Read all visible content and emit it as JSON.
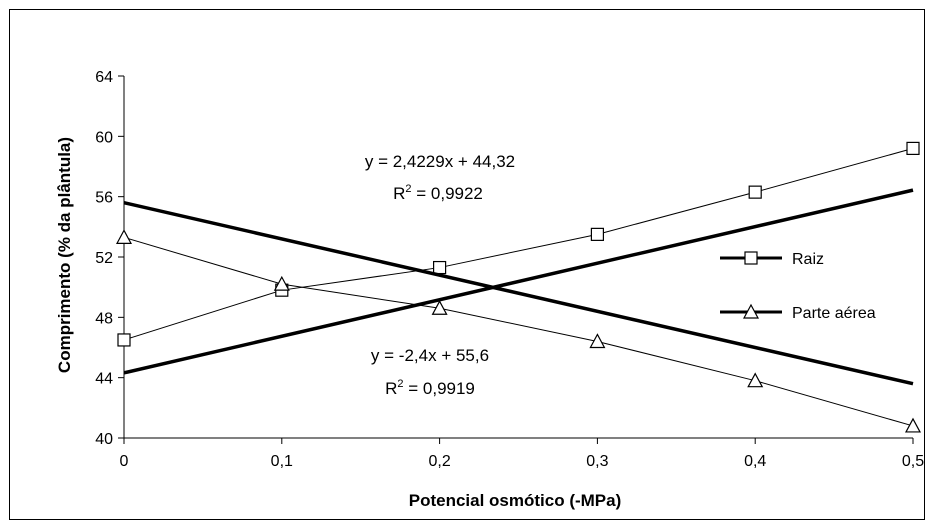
{
  "chart_data": {
    "type": "line",
    "xlabel": "Potencial osmótico (-MPa)",
    "ylabel": "Comprimento (% da plântula)",
    "xlim": [
      0,
      0.5
    ],
    "ylim": [
      40,
      64
    ],
    "x_ticks": [
      "0",
      "0,1",
      "0,2",
      "0,3",
      "0,4",
      "0,5"
    ],
    "y_ticks": [
      "40",
      "44",
      "48",
      "52",
      "56",
      "60",
      "64"
    ],
    "x": [
      0,
      0.1,
      0.2,
      0.3,
      0.4,
      0.5
    ],
    "grid": false,
    "legend_position": "right",
    "series": [
      {
        "name": "Raiz",
        "marker": "square",
        "values": [
          46.5,
          49.8,
          51.3,
          53.5,
          56.3,
          59.2
        ],
        "trend": {
          "slope": 2.4229,
          "intercept": 44.32
        },
        "equation": "y = 2,4229x + 44,32",
        "r2_prefix": "R",
        "r2_value": " = 0,9922"
      },
      {
        "name": "Parte aérea",
        "marker": "triangle",
        "values": [
          53.3,
          50.2,
          48.6,
          46.4,
          43.8,
          40.8
        ],
        "trend": {
          "slope": -2.4,
          "intercept": 55.6
        },
        "equation": "y = -2,4x + 55,6",
        "r2_prefix": "R",
        "r2_value": " = 0,9919"
      }
    ],
    "r2_exponent": "2"
  }
}
